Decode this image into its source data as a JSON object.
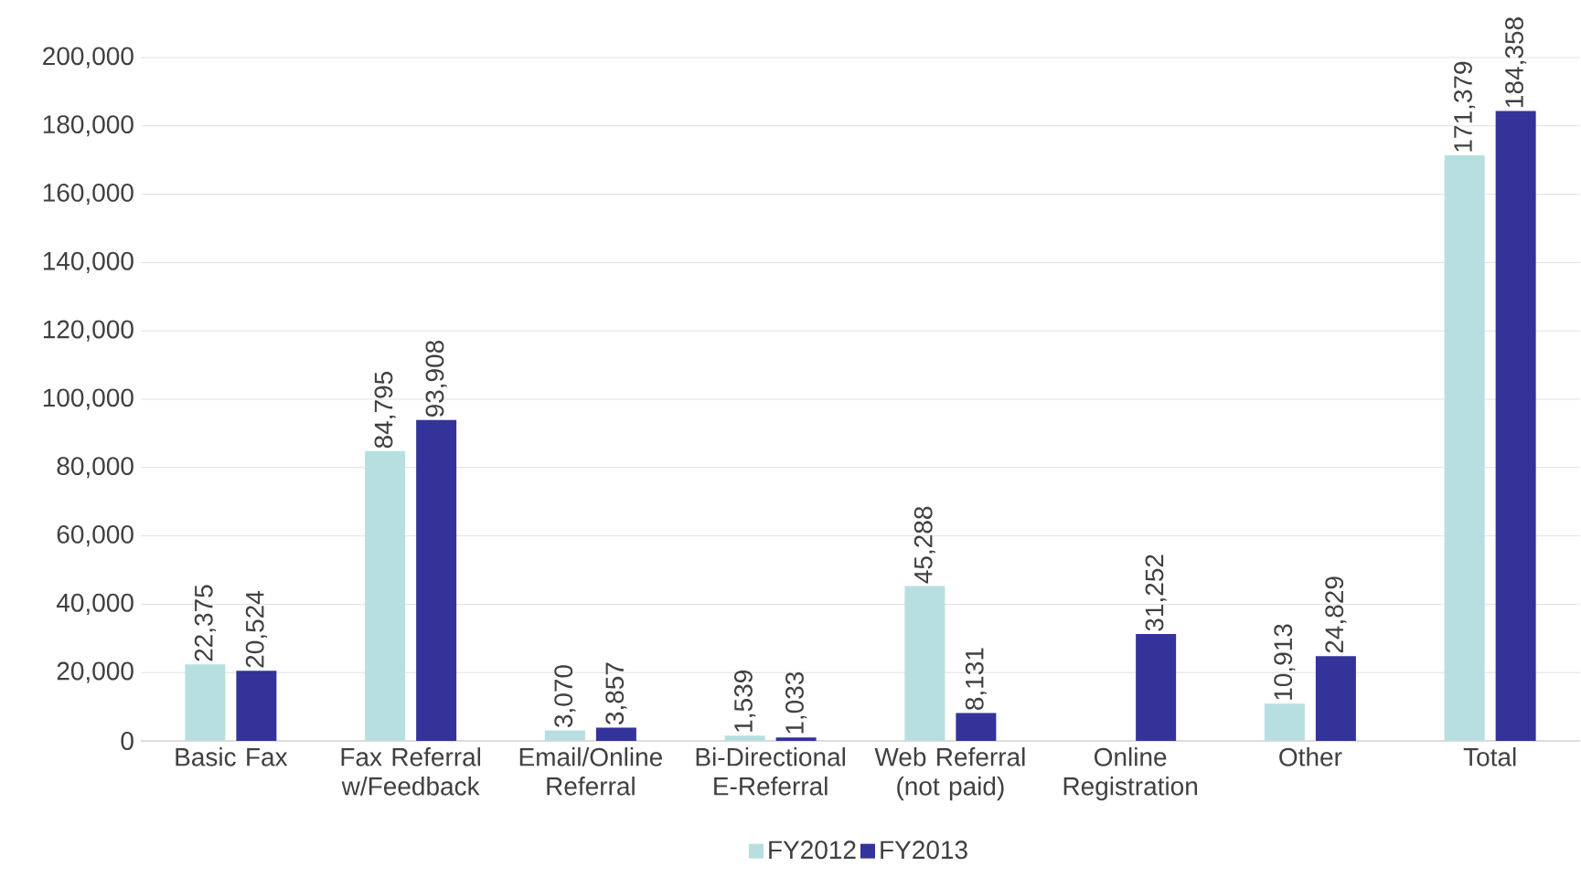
{
  "chart_data": {
    "type": "bar",
    "categories": [
      "Basic Fax",
      "Fax Referral w/Feedback",
      "Email/Online Referral",
      "Bi-Directional E-Referral",
      "Web Referral (not paid)",
      "Online Registration",
      "Other",
      "Total"
    ],
    "series": [
      {
        "name": "FY2012",
        "color": "#b7dfe0",
        "values": [
          22375,
          84795,
          3070,
          1539,
          45288,
          null,
          10913,
          171379
        ],
        "value_labels": [
          "22,375",
          "84,795",
          "3,070",
          "1,539",
          "45,288",
          null,
          "10,913",
          "171,379"
        ]
      },
      {
        "name": "FY2013",
        "color": "#333399",
        "values": [
          20524,
          93908,
          3857,
          1033,
          8131,
          31252,
          24829,
          184358
        ],
        "value_labels": [
          "20,524",
          "93,908",
          "3,857",
          "1,033",
          "8,131",
          "31,252",
          "24,829",
          "184,358"
        ]
      }
    ],
    "ylim": [
      0,
      200000
    ],
    "yticks": [
      0,
      {
        "value": 20000,
        "label": "20,000"
      },
      {
        "value": 40000,
        "label": "40,000"
      },
      {
        "value": 60000,
        "label": "60,000"
      },
      {
        "value": 80000,
        "label": "80,000"
      },
      {
        "value": 100000,
        "label": "100,000"
      },
      {
        "value": 120000,
        "label": "120,000"
      },
      {
        "value": 140000,
        "label": "140,000"
      },
      {
        "value": 160000,
        "label": "160,000"
      },
      {
        "value": 180000,
        "label": "180,000"
      },
      {
        "value": 200000,
        "label": "200,000"
      }
    ],
    "grid": "y",
    "legend": "bottom"
  }
}
